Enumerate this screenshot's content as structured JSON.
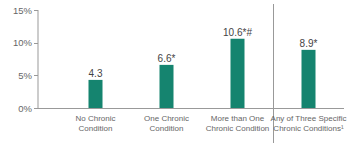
{
  "chart_data": {
    "type": "bar",
    "categories": [
      "No Chronic Condition",
      "One Chronic Condition",
      "More than One Chronic Condition",
      "Any of Three Specific Chronic Conditions¹"
    ],
    "values": [
      4.3,
      6.6,
      10.6,
      8.9
    ],
    "value_labels": [
      "4.3",
      "6.6*",
      "10.6*#",
      "8.9*"
    ],
    "data_labels": true,
    "color": "#15846f",
    "ylim": [
      0,
      15
    ],
    "yticks": [
      {
        "value": 0,
        "label": "0%"
      },
      {
        "value": 5,
        "label": "5%"
      },
      {
        "value": 10,
        "label": "10%"
      },
      {
        "value": 15,
        "label": "15%"
      }
    ],
    "grid": false
  }
}
